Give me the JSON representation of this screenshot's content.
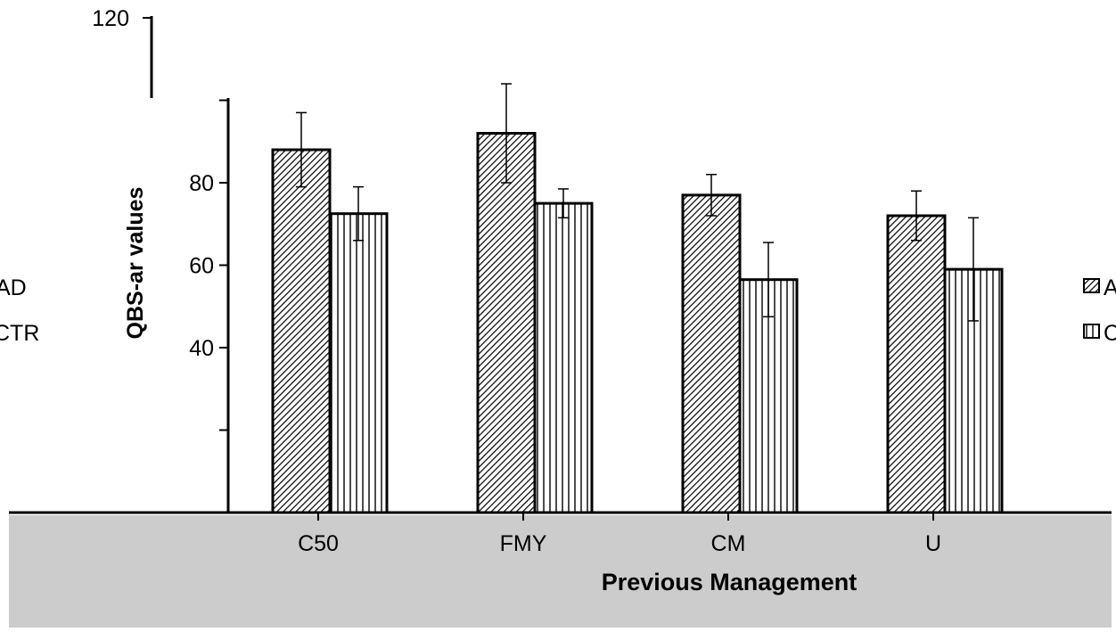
{
  "chart_data": {
    "type": "bar",
    "title": "",
    "xlabel": "Previous Management",
    "ylabel": "QBS-ar values",
    "categories": [
      "C50",
      "FMY",
      "CM",
      "U"
    ],
    "series": [
      {
        "name": "AD",
        "values": [
          88,
          92,
          77,
          72
        ],
        "errors": [
          9,
          12,
          5,
          6
        ],
        "pattern": "diagonal"
      },
      {
        "name": "CTR",
        "values": [
          72.5,
          75,
          56.5,
          59
        ],
        "errors": [
          6.5,
          3.5,
          9,
          12.5
        ],
        "pattern": "vertical"
      }
    ],
    "ylim": [
      0,
      120
    ],
    "yticks": [
      0,
      20,
      40,
      60,
      80,
      100,
      120
    ],
    "ytick_labels_visible": [
      "120",
      "80",
      "60",
      "40"
    ],
    "grid": false,
    "legend": {
      "position": "right",
      "entries": [
        "AD",
        "CTR"
      ]
    },
    "colors": {
      "bar_stroke": "#000000",
      "bar_fill": "#ffffff",
      "footer_band": "#cccccc"
    }
  }
}
